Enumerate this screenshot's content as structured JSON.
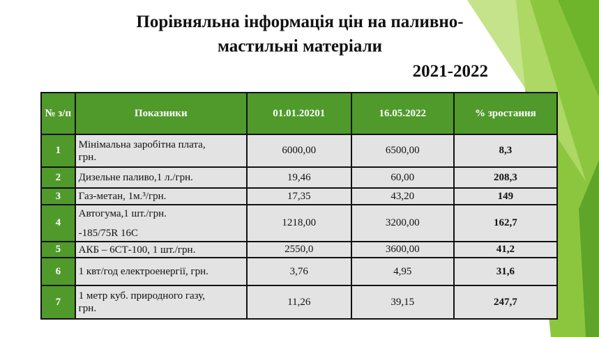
{
  "header": {
    "title_lines": [
      "Порівняльна інформація цін на паливно-",
      "мастильні матеріали"
    ],
    "year": "2021-2022"
  },
  "table": {
    "columns": [
      "№ з/п",
      "Показники",
      "01.01.20201",
      "16.05.2022",
      "% зростання"
    ],
    "rows": [
      {
        "no": "1",
        "name": [
          "Мінімальна заробітна плата,",
          "грн."
        ],
        "v1": "6000,00",
        "v2": "6500,00",
        "growth": "8,3"
      },
      {
        "no": "2",
        "name": [
          "Дизельне паливо,1 л./грн."
        ],
        "v1": "19,46",
        "v2": "60,00",
        "growth": "208,3"
      },
      {
        "no": "3",
        "name": [
          "Газ-метан, 1м.³/грн."
        ],
        "v1": "17,35",
        "v2": "43,20",
        "growth": "149"
      },
      {
        "no": "4",
        "name": [
          "Автогума,1 шт./грн.",
          "-185/75R 16C"
        ],
        "v1": "1218,00",
        "v2": "3200,00",
        "growth": "162,7"
      },
      {
        "no": "5",
        "name": [
          "АКБ – 6СТ-100, 1 шт./грн."
        ],
        "v1": "2550,0",
        "v2": "3600,00",
        "growth": "41,2"
      },
      {
        "no": "6",
        "name": [
          "1 квт/год електроенергії, грн."
        ],
        "v1": "3,76",
        "v2": "4,95",
        "growth": "31,6"
      },
      {
        "no": "7",
        "name": [
          "1 метр куб. природного газу,",
          "грн."
        ],
        "v1": "11,26",
        "v2": "39,15",
        "growth": "247,7"
      }
    ]
  }
}
